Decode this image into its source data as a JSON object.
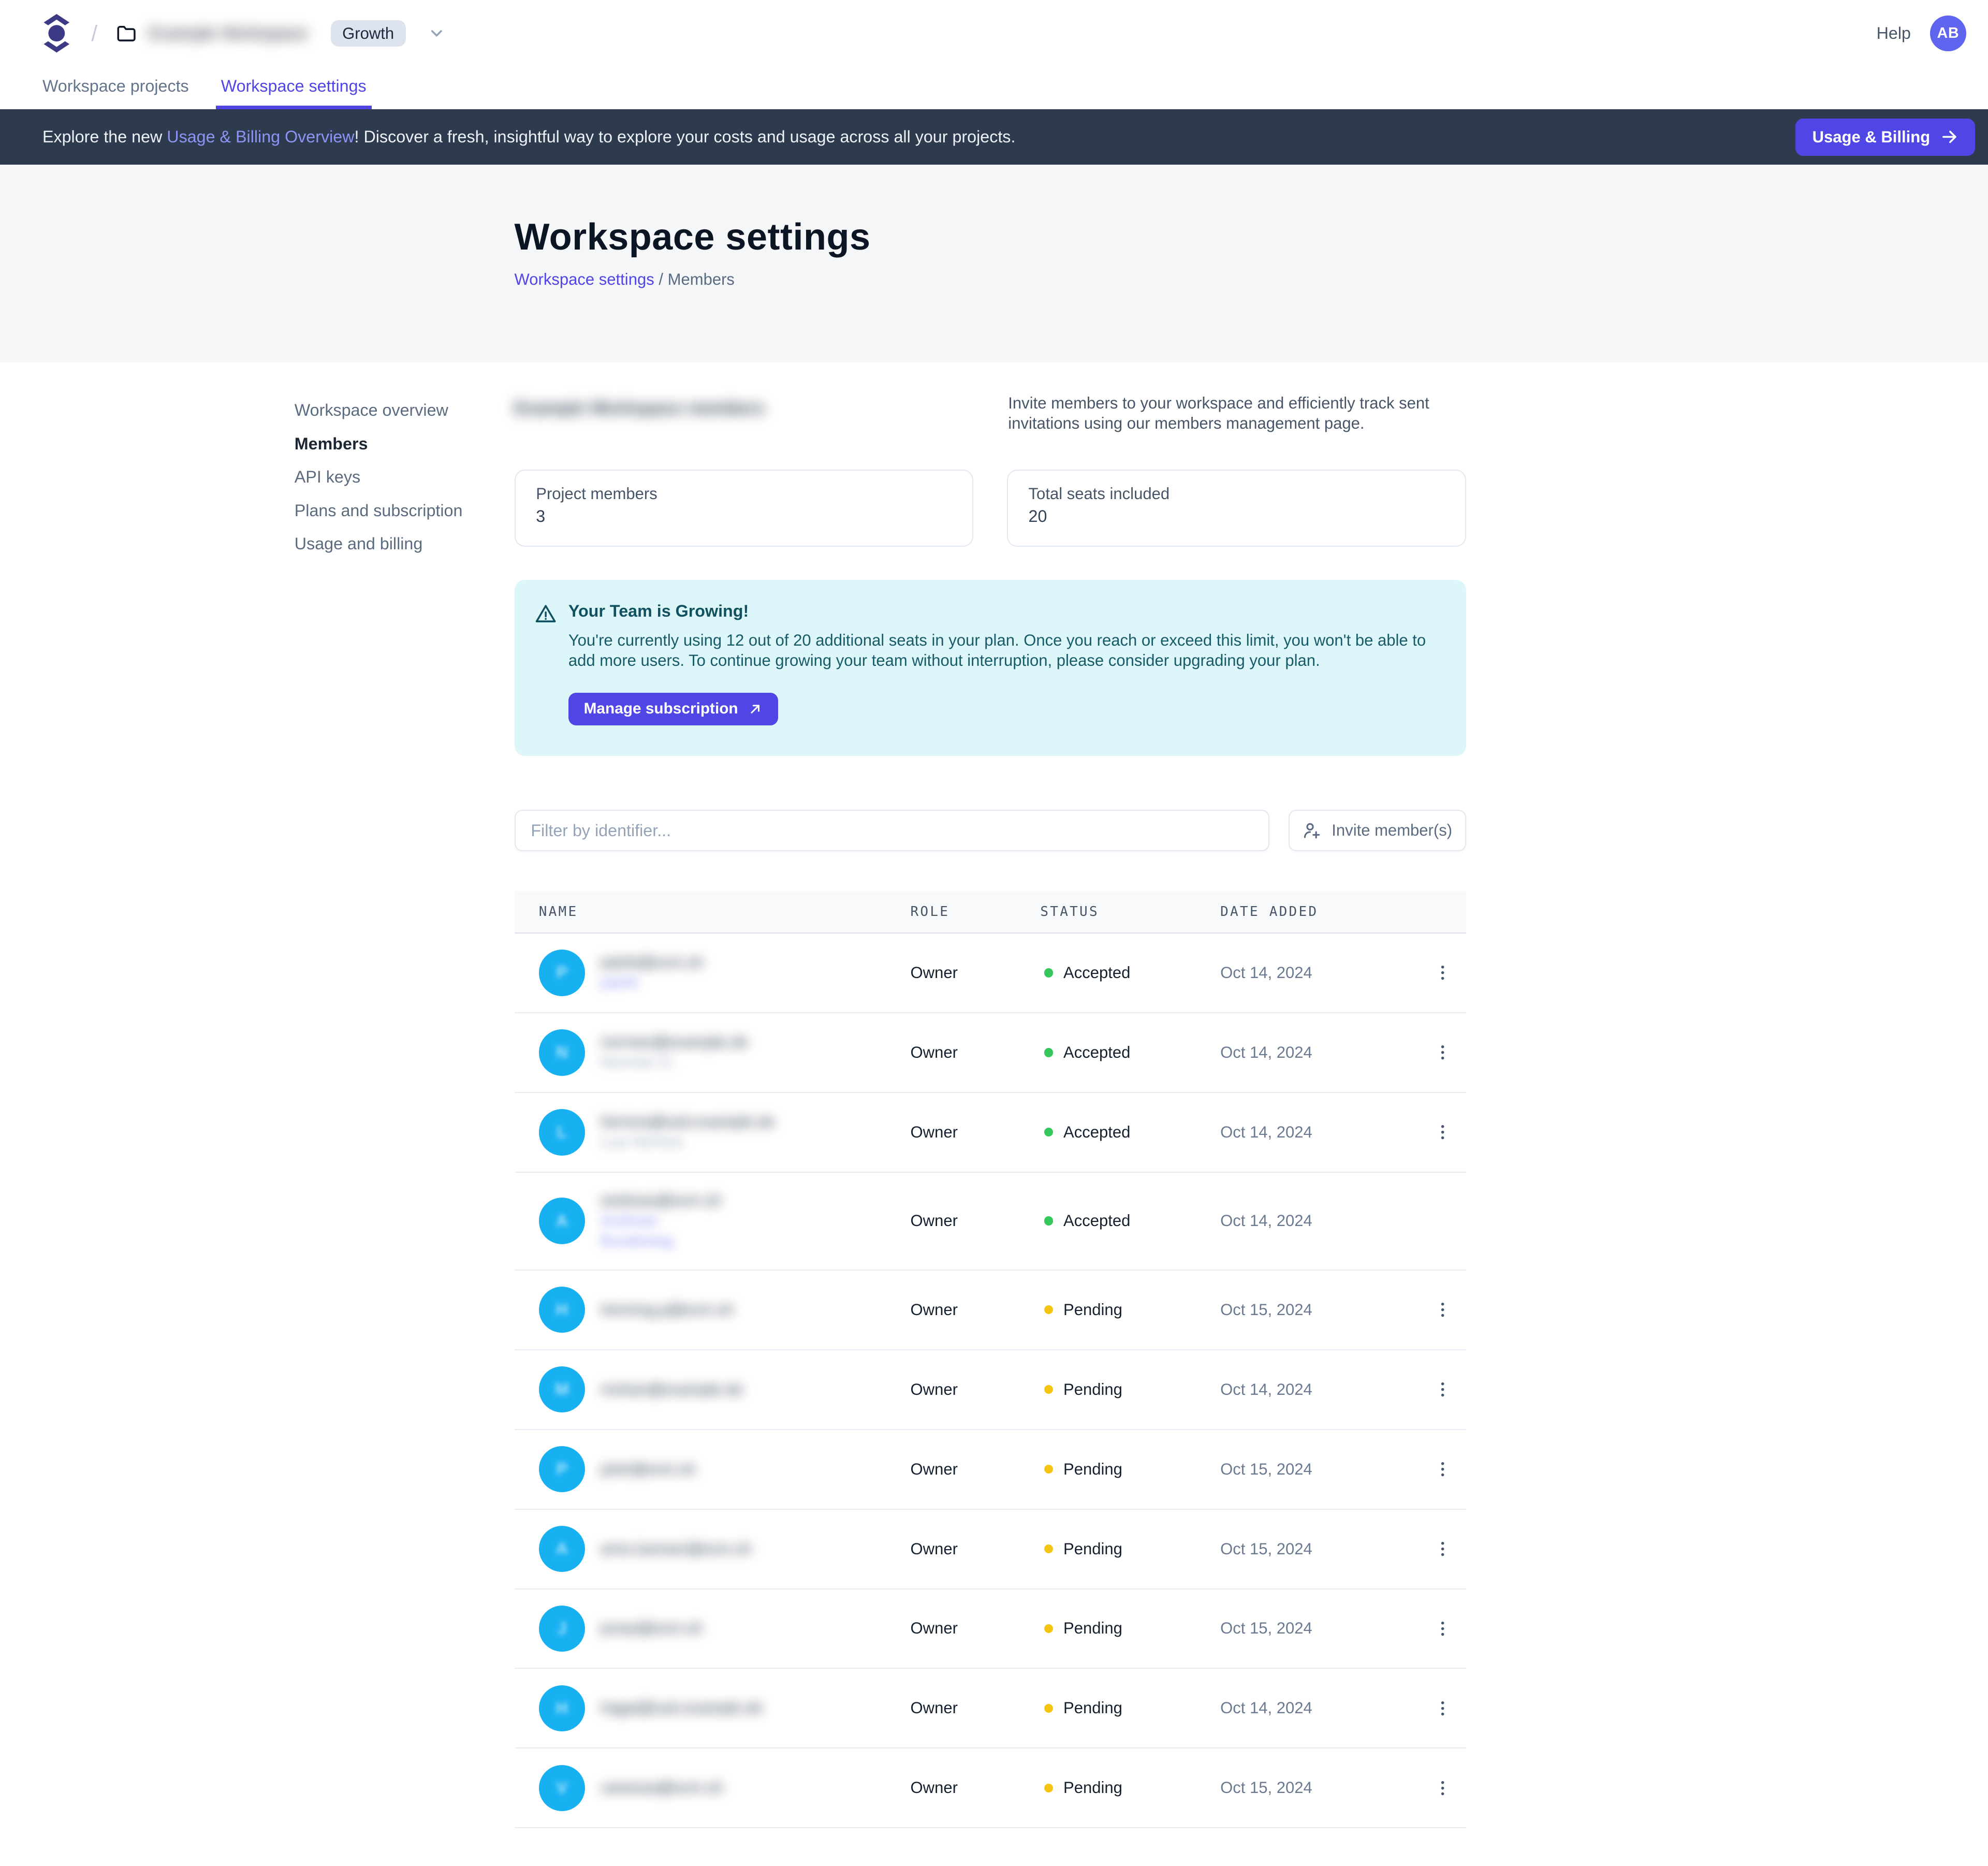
{
  "colors": {
    "accent": "#4f46e5",
    "banner_bg": "#2e3b4e",
    "status_accepted": "#34c75b",
    "status_pending": "#f6c514",
    "member_avatar": "#17b1f2",
    "alert_bg": "#ddf6fa",
    "alert_text": "#11505e",
    "user_avatar": "#6065ef"
  },
  "header": {
    "breadcrumb_separator": "/",
    "workspace": {
      "name": "Example Workspace",
      "redacted": true
    },
    "plan_badge": "Growth",
    "help_label": "Help",
    "avatar_initials": "AB"
  },
  "tabs": [
    {
      "label": "Workspace projects",
      "active": false
    },
    {
      "label": "Workspace settings",
      "active": true
    }
  ],
  "banner": {
    "text_prefix": "Explore the new ",
    "link_text": "Usage & Billing Overview",
    "text_suffix": "! Discover a fresh, insightful way to explore your costs and usage across all your projects.",
    "button_label": "Usage & Billing"
  },
  "hero": {
    "title": "Workspace settings",
    "breadcrumb": {
      "link": "Workspace settings",
      "separator": " / ",
      "current": "Members"
    }
  },
  "sidebar": {
    "items": [
      "Workspace overview",
      "Members",
      "API keys",
      "Plans and subscription",
      "Usage and billing"
    ],
    "active_index": 1
  },
  "members": {
    "heading": {
      "text": "Example Workspace members",
      "redacted": true
    },
    "description": "Invite members to your workspace and efficiently track sent invitations using our members management page.",
    "stats": [
      {
        "label": "Project members",
        "value": "3"
      },
      {
        "label": "Total seats included",
        "value": "20"
      }
    ],
    "alert": {
      "title": "Your Team is Growing!",
      "body": "You're currently using 12 out of 20 additional seats in your plan. Once you reach or exceed this limit, you won't be able to add more users. To continue growing your team without interruption, please consider upgrading your plan.",
      "button_label": "Manage subscription"
    },
    "filter_placeholder": "Filter by identifier...",
    "invite_button_label": "Invite member(s)",
    "table": {
      "columns": [
        "NAME",
        "ROLE",
        "STATUS",
        "DATE ADDED"
      ],
      "rows": [
        {
          "redacted": true,
          "initial": "P",
          "email": "patrik@exm.sh",
          "secondary": [
            "patrik"
          ],
          "secondary_style": "link",
          "role": "Owner",
          "status": "Accepted",
          "status_color": "green",
          "date": "Oct 14, 2024",
          "menu": true
        },
        {
          "redacted": true,
          "initial": "N",
          "email": "norman@example.de",
          "secondary": [
            "Norman O."
          ],
          "secondary_style": "muted",
          "role": "Owner",
          "status": "Accepted",
          "status_color": "green",
          "date": "Oct 14, 2024",
          "menu": true
        },
        {
          "redacted": true,
          "initial": "L",
          "email": "herrera@sub.example.de",
          "secondary": [
            "Lua Herrera"
          ],
          "secondary_style": "muted",
          "role": "Owner",
          "status": "Accepted",
          "status_color": "green",
          "date": "Oct 14, 2024",
          "menu": true
        },
        {
          "redacted": true,
          "initial": "A",
          "email": "andreas@exm.sh",
          "secondary": [
            "Andreas",
            "Buraleweg"
          ],
          "secondary_style": "link",
          "role": "Owner",
          "status": "Accepted",
          "status_color": "green",
          "date": "Oct 14, 2024",
          "menu": false
        },
        {
          "redacted": true,
          "initial": "H",
          "email": "henning.p@exm.sh",
          "secondary": [],
          "secondary_style": "muted",
          "role": "Owner",
          "status": "Pending",
          "status_color": "yellow",
          "date": "Oct 15, 2024",
          "menu": true
        },
        {
          "redacted": true,
          "initial": "M",
          "email": "mohan@example.de",
          "secondary": [],
          "secondary_style": "muted",
          "role": "Owner",
          "status": "Pending",
          "status_color": "yellow",
          "date": "Oct 14, 2024",
          "menu": true
        },
        {
          "redacted": true,
          "initial": "P",
          "email": "piotr@exm.sh",
          "secondary": [],
          "secondary_style": "muted",
          "role": "Owner",
          "status": "Pending",
          "status_color": "yellow",
          "date": "Oct 15, 2024",
          "menu": true
        },
        {
          "redacted": true,
          "initial": "A",
          "email": "arne.luenser@exm.sh",
          "secondary": [],
          "secondary_style": "muted",
          "role": "Owner",
          "status": "Pending",
          "status_color": "yellow",
          "date": "Oct 15, 2024",
          "menu": true
        },
        {
          "redacted": true,
          "initial": "J",
          "email": "jonas@exm.sh",
          "secondary": [],
          "secondary_style": "muted",
          "role": "Owner",
          "status": "Pending",
          "status_color": "yellow",
          "date": "Oct 15, 2024",
          "menu": true
        },
        {
          "redacted": true,
          "initial": "H",
          "email": "hagai@sub.example.de",
          "secondary": [],
          "secondary_style": "muted",
          "role": "Owner",
          "status": "Pending",
          "status_color": "yellow",
          "date": "Oct 14, 2024",
          "menu": true
        },
        {
          "redacted": true,
          "initial": "V",
          "email": "vanessa@exm.sh",
          "secondary": [],
          "secondary_style": "muted",
          "role": "Owner",
          "status": "Pending",
          "status_color": "yellow",
          "date": "Oct 15, 2024",
          "menu": true
        }
      ]
    }
  }
}
